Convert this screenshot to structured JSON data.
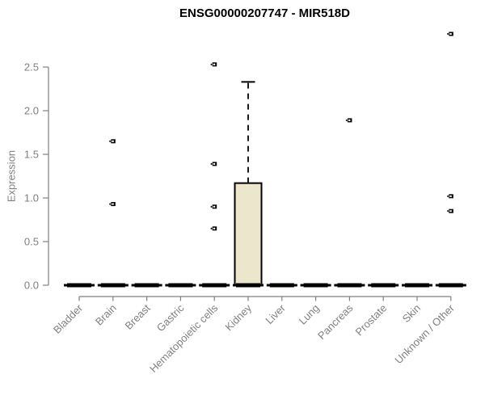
{
  "header": {
    "title": "ENSG00000207747 - MIR518D"
  },
  "chart_data": {
    "type": "boxplot",
    "title": "ENSG00000207747 - MIR518D",
    "xlabel": "",
    "ylabel": "Expression",
    "ylim": [
      0,
      2.9
    ],
    "yticks": [
      0.0,
      0.5,
      1.0,
      1.5,
      2.0,
      2.5
    ],
    "grid": "off",
    "legend": "none",
    "categories": [
      "Bladder",
      "Brain",
      "Breast",
      "Gastric",
      "Hematopoietic cells",
      "Kidney",
      "Liver",
      "Lung",
      "Pancreas",
      "Prostate",
      "Skin",
      "Unknown / Other"
    ],
    "boxes": [
      {
        "category": "Bladder",
        "median": 0,
        "q1": 0,
        "q3": 0,
        "whisker_low": 0,
        "whisker_high": 0,
        "outliers": []
      },
      {
        "category": "Brain",
        "median": 0,
        "q1": 0,
        "q3": 0,
        "whisker_low": 0,
        "whisker_high": 0,
        "outliers": [
          1.65,
          0.93
        ]
      },
      {
        "category": "Breast",
        "median": 0,
        "q1": 0,
        "q3": 0,
        "whisker_low": 0,
        "whisker_high": 0,
        "outliers": []
      },
      {
        "category": "Gastric",
        "median": 0,
        "q1": 0,
        "q3": 0,
        "whisker_low": 0,
        "whisker_high": 0,
        "outliers": []
      },
      {
        "category": "Hematopoietic cells",
        "median": 0,
        "q1": 0,
        "q3": 0,
        "whisker_low": 0,
        "whisker_high": 0,
        "outliers": [
          2.53,
          1.39,
          0.9,
          0.65
        ]
      },
      {
        "category": "Kidney",
        "median": 0,
        "q1": 0,
        "q3": 1.17,
        "whisker_low": 0,
        "whisker_high": 2.33,
        "outliers": []
      },
      {
        "category": "Liver",
        "median": 0,
        "q1": 0,
        "q3": 0,
        "whisker_low": 0,
        "whisker_high": 0,
        "outliers": []
      },
      {
        "category": "Lung",
        "median": 0,
        "q1": 0,
        "q3": 0,
        "whisker_low": 0,
        "whisker_high": 0,
        "outliers": []
      },
      {
        "category": "Pancreas",
        "median": 0,
        "q1": 0,
        "q3": 0,
        "whisker_low": 0,
        "whisker_high": 0,
        "outliers": [
          1.89
        ]
      },
      {
        "category": "Prostate",
        "median": 0,
        "q1": 0,
        "q3": 0,
        "whisker_low": 0,
        "whisker_high": 0,
        "outliers": []
      },
      {
        "category": "Skin",
        "median": 0,
        "q1": 0,
        "q3": 0,
        "whisker_low": 0,
        "whisker_high": 0,
        "outliers": []
      },
      {
        "category": "Unknown / Other",
        "median": 0,
        "q1": 0,
        "q3": 0,
        "whisker_low": 0,
        "whisker_high": 0,
        "outliers": [
          2.88,
          1.02,
          0.85
        ]
      }
    ],
    "colors": {
      "box_fill": "#ECE6CC",
      "box_stroke": "#000000",
      "median": "#000000",
      "outlier": "#000000",
      "axis": "#808080",
      "label": "#808080",
      "title": "#000000",
      "background": "#ffffff"
    }
  }
}
